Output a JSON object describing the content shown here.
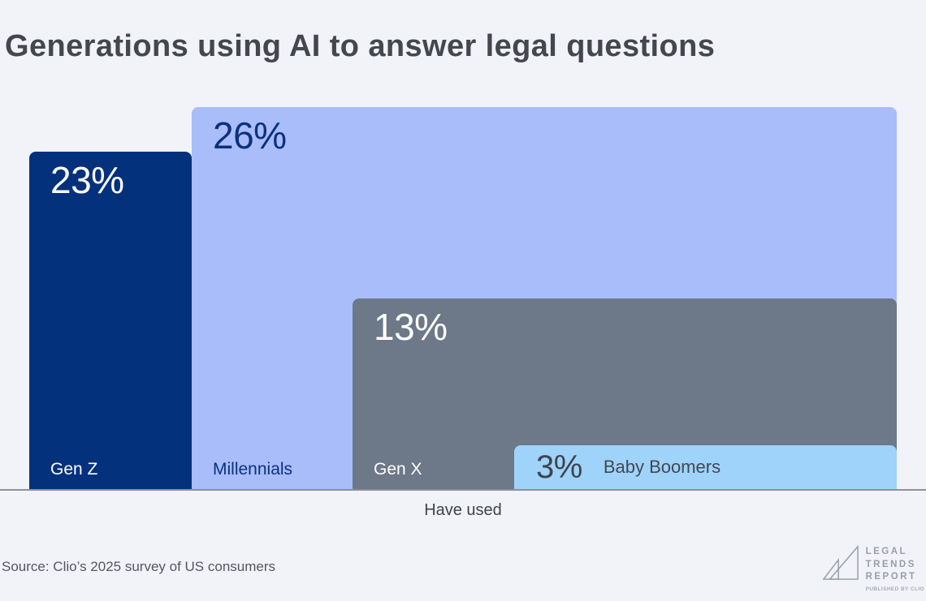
{
  "title": "Generations using AI to answer legal questions",
  "chart_data": {
    "type": "bar",
    "title": "Generations using AI to answer legal questions",
    "categories": [
      "Gen Z",
      "Millennials",
      "Gen X",
      "Baby Boomers"
    ],
    "values": [
      23,
      26,
      13,
      3
    ],
    "value_labels": [
      "23%",
      "26%",
      "13%",
      "3%"
    ],
    "xlabel": "Have used",
    "ylabel": "",
    "ylim": [
      0,
      26
    ],
    "grid": false,
    "legend_position": "none",
    "bar_colors": [
      "#04317c",
      "#a9bdfa",
      "#6d7888",
      "#9fd3fa"
    ],
    "value_label_colors": [
      "#ffffff",
      "#0b317e",
      "#ffffff",
      "#3f4450"
    ],
    "category_label_colors": [
      "#ffffff",
      "#0b317e",
      "#ffffff",
      "#434853"
    ]
  },
  "axis": {
    "x_axis_label": "Have used",
    "axis_line_color": "#8b919b"
  },
  "footer": {
    "source": "Source: Clio’s 2025 survey of US consumers",
    "logo": {
      "line1": "LEGAL",
      "line2": "TRENDS",
      "line3": "REPORT",
      "subline": "PUBLISHED BY CLIO"
    }
  },
  "colors": {
    "background": "#f2f3f8",
    "title_text": "#45474e",
    "axis_label_text": "#3f434c",
    "source_text": "#54575e",
    "logo_text": "#989ea7",
    "logo_subtext": "#a6abb3"
  }
}
